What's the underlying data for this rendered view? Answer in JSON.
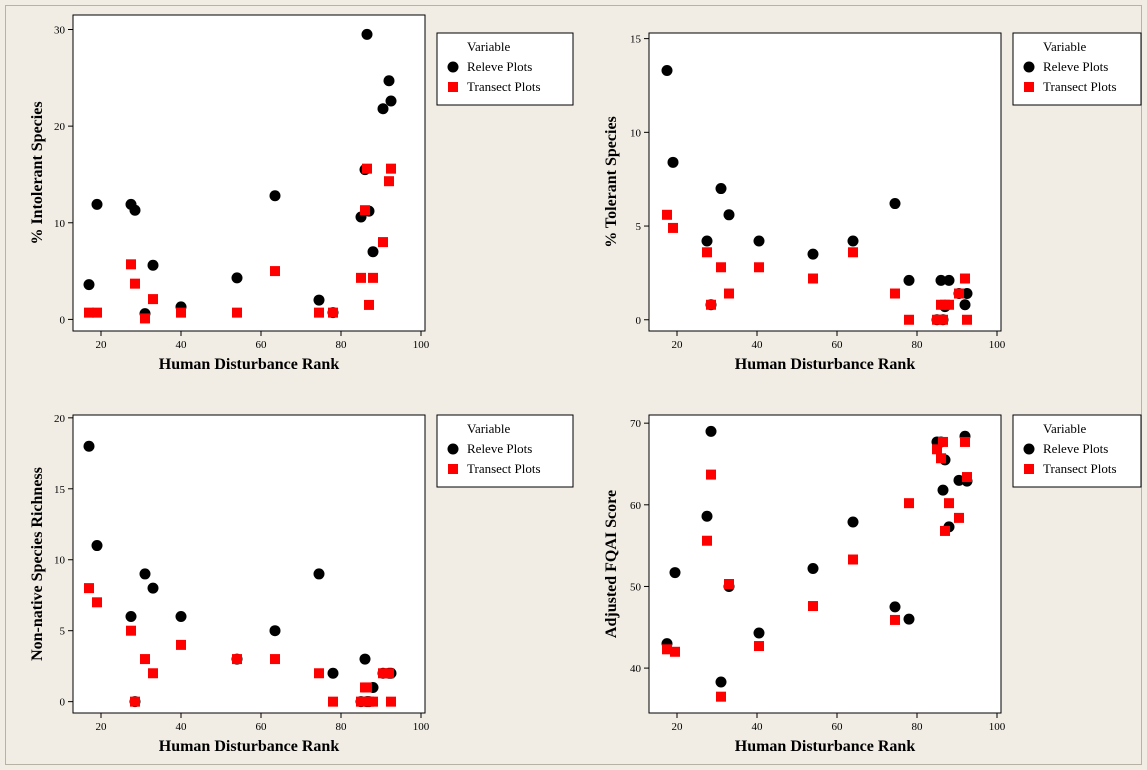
{
  "chart_data": [
    {
      "type": "scatter",
      "xlabel": "Human Disturbance Rank",
      "ylabel": "% Intolerant Species",
      "xlim": [
        13,
        101
      ],
      "ylim": [
        -1.2,
        31.5
      ],
      "xticks": [
        20,
        40,
        60,
        80,
        100
      ],
      "yticks": [
        0,
        10,
        20,
        30
      ],
      "legend": {
        "title": "Variable",
        "position": "right"
      },
      "series": [
        {
          "name": "Releve Plots",
          "marker": "circle",
          "color": "#000000",
          "points": [
            [
              17,
              3.6
            ],
            [
              19,
              11.9
            ],
            [
              27.5,
              11.9
            ],
            [
              28.5,
              11.3
            ],
            [
              31,
              0.6
            ],
            [
              33,
              5.6
            ],
            [
              40,
              1.3
            ],
            [
              54,
              4.3
            ],
            [
              63.5,
              12.8
            ],
            [
              74.5,
              2.0
            ],
            [
              78,
              0.7
            ],
            [
              85,
              10.6
            ],
            [
              86,
              15.5
            ],
            [
              86.5,
              29.5
            ],
            [
              87,
              11.2
            ],
            [
              88,
              7.0
            ],
            [
              90.5,
              21.8
            ],
            [
              92,
              24.7
            ],
            [
              92.5,
              22.6
            ]
          ]
        },
        {
          "name": "Transect Plots",
          "marker": "square",
          "color": "#ff0000",
          "points": [
            [
              17,
              0.7
            ],
            [
              19,
              0.7
            ],
            [
              27.5,
              5.7
            ],
            [
              28.5,
              3.7
            ],
            [
              31,
              0.1
            ],
            [
              33,
              2.1
            ],
            [
              40,
              0.7
            ],
            [
              54,
              0.7
            ],
            [
              63.5,
              5.0
            ],
            [
              74.5,
              0.7
            ],
            [
              78,
              0.7
            ],
            [
              85,
              4.3
            ],
            [
              86,
              11.3
            ],
            [
              86.5,
              15.6
            ],
            [
              87,
              1.5
            ],
            [
              88,
              4.3
            ],
            [
              90.5,
              8.0
            ],
            [
              92,
              14.3
            ],
            [
              92.5,
              15.6
            ]
          ]
        }
      ]
    },
    {
      "type": "scatter",
      "xlabel": "Human Disturbance Rank",
      "ylabel": "% Tolerant Species",
      "xlim": [
        13,
        101
      ],
      "ylim": [
        -0.6,
        15.3
      ],
      "xticks": [
        20,
        40,
        60,
        80,
        100
      ],
      "yticks": [
        0,
        5,
        10,
        15
      ],
      "legend": {
        "title": "Variable",
        "position": "right"
      },
      "series": [
        {
          "name": "Releve Plots",
          "marker": "circle",
          "color": "#000000",
          "points": [
            [
              17.5,
              13.3
            ],
            [
              19,
              8.4
            ],
            [
              27.5,
              4.2
            ],
            [
              28.5,
              0.8
            ],
            [
              31,
              7.0
            ],
            [
              33,
              5.6
            ],
            [
              40.5,
              4.2
            ],
            [
              54,
              3.5
            ],
            [
              64,
              4.2
            ],
            [
              74.5,
              6.2
            ],
            [
              78,
              2.1
            ],
            [
              85,
              0.0
            ],
            [
              86,
              2.1
            ],
            [
              86.5,
              0.0
            ],
            [
              87,
              0.7
            ],
            [
              88,
              2.1
            ],
            [
              90.5,
              1.4
            ],
            [
              92,
              0.8
            ],
            [
              92.5,
              1.4
            ]
          ]
        },
        {
          "name": "Transect Plots",
          "marker": "square",
          "color": "#ff0000",
          "points": [
            [
              17.5,
              5.6
            ],
            [
              19,
              4.9
            ],
            [
              27.5,
              3.6
            ],
            [
              28.5,
              0.8
            ],
            [
              31,
              2.8
            ],
            [
              33,
              1.4
            ],
            [
              40.5,
              2.8
            ],
            [
              54,
              2.2
            ],
            [
              64,
              3.6
            ],
            [
              74.5,
              1.4
            ],
            [
              78,
              0.0
            ],
            [
              85,
              0.0
            ],
            [
              86,
              0.8
            ],
            [
              86.5,
              0.0
            ],
            [
              87,
              0.8
            ],
            [
              88,
              0.8
            ],
            [
              90.5,
              1.4
            ],
            [
              92,
              2.2
            ],
            [
              92.5,
              0.0
            ]
          ]
        }
      ]
    },
    {
      "type": "scatter",
      "xlabel": "Human Disturbance Rank",
      "ylabel": "Non-native Species Richness",
      "xlim": [
        13,
        101
      ],
      "ylim": [
        -0.8,
        20.2
      ],
      "xticks": [
        20,
        40,
        60,
        80,
        100
      ],
      "yticks": [
        0,
        5,
        10,
        15,
        20
      ],
      "legend": {
        "title": "Variable",
        "position": "right"
      },
      "series": [
        {
          "name": "Releve Plots",
          "marker": "circle",
          "color": "#000000",
          "points": [
            [
              17,
              18
            ],
            [
              19,
              11
            ],
            [
              27.5,
              6
            ],
            [
              28.5,
              0
            ],
            [
              31,
              9
            ],
            [
              33,
              8
            ],
            [
              40,
              6
            ],
            [
              54,
              3
            ],
            [
              63.5,
              5
            ],
            [
              74.5,
              9
            ],
            [
              78,
              2
            ],
            [
              85,
              0
            ],
            [
              86,
              3
            ],
            [
              86.5,
              0
            ],
            [
              87,
              0
            ],
            [
              88,
              1
            ],
            [
              90.5,
              2
            ],
            [
              92,
              2
            ],
            [
              92.5,
              2
            ]
          ]
        },
        {
          "name": "Transect Plots",
          "marker": "square",
          "color": "#ff0000",
          "points": [
            [
              17,
              8
            ],
            [
              19,
              7
            ],
            [
              27.5,
              5
            ],
            [
              28.5,
              0
            ],
            [
              31,
              3
            ],
            [
              33,
              2
            ],
            [
              40,
              4
            ],
            [
              54,
              3
            ],
            [
              63.5,
              3
            ],
            [
              74.5,
              2
            ],
            [
              78,
              0
            ],
            [
              85,
              0
            ],
            [
              86,
              1
            ],
            [
              86.5,
              1
            ],
            [
              87,
              0
            ],
            [
              88,
              0
            ],
            [
              90.5,
              2
            ],
            [
              92,
              2
            ],
            [
              92.5,
              0
            ]
          ]
        }
      ]
    },
    {
      "type": "scatter",
      "xlabel": "Human Disturbance Rank",
      "ylabel": "Adjusted FQAI Score",
      "xlim": [
        13,
        101
      ],
      "ylim": [
        34.5,
        71
      ],
      "xticks": [
        20,
        40,
        60,
        80,
        100
      ],
      "yticks": [
        40,
        50,
        60,
        70
      ],
      "legend": {
        "title": "Variable",
        "position": "right"
      },
      "series": [
        {
          "name": "Releve Plots",
          "marker": "circle",
          "color": "#000000",
          "points": [
            [
              17.5,
              43.0
            ],
            [
              19.5,
              51.7
            ],
            [
              27.5,
              58.6
            ],
            [
              28.5,
              69.0
            ],
            [
              31,
              38.3
            ],
            [
              33,
              50.0
            ],
            [
              40.5,
              44.3
            ],
            [
              54,
              52.2
            ],
            [
              64,
              57.9
            ],
            [
              74.5,
              47.5
            ],
            [
              78,
              46.0
            ],
            [
              85,
              67.7
            ],
            [
              86,
              67.7
            ],
            [
              86.5,
              61.8
            ],
            [
              87,
              65.5
            ],
            [
              88,
              57.3
            ],
            [
              90.5,
              63.0
            ],
            [
              92,
              68.4
            ],
            [
              92.5,
              62.9
            ]
          ]
        },
        {
          "name": "Transect Plots",
          "marker": "square",
          "color": "#ff0000",
          "points": [
            [
              17.5,
              42.3
            ],
            [
              19.5,
              42.0
            ],
            [
              27.5,
              55.6
            ],
            [
              28.5,
              63.7
            ],
            [
              31,
              36.5
            ],
            [
              33,
              50.3
            ],
            [
              40.5,
              42.7
            ],
            [
              54,
              47.6
            ],
            [
              64,
              53.3
            ],
            [
              74.5,
              45.9
            ],
            [
              78,
              60.2
            ],
            [
              85,
              66.8
            ],
            [
              86,
              65.7
            ],
            [
              86.5,
              67.7
            ],
            [
              87,
              56.8
            ],
            [
              88,
              60.2
            ],
            [
              90.5,
              58.4
            ],
            [
              92,
              67.7
            ],
            [
              92.5,
              63.4
            ]
          ]
        }
      ]
    }
  ]
}
